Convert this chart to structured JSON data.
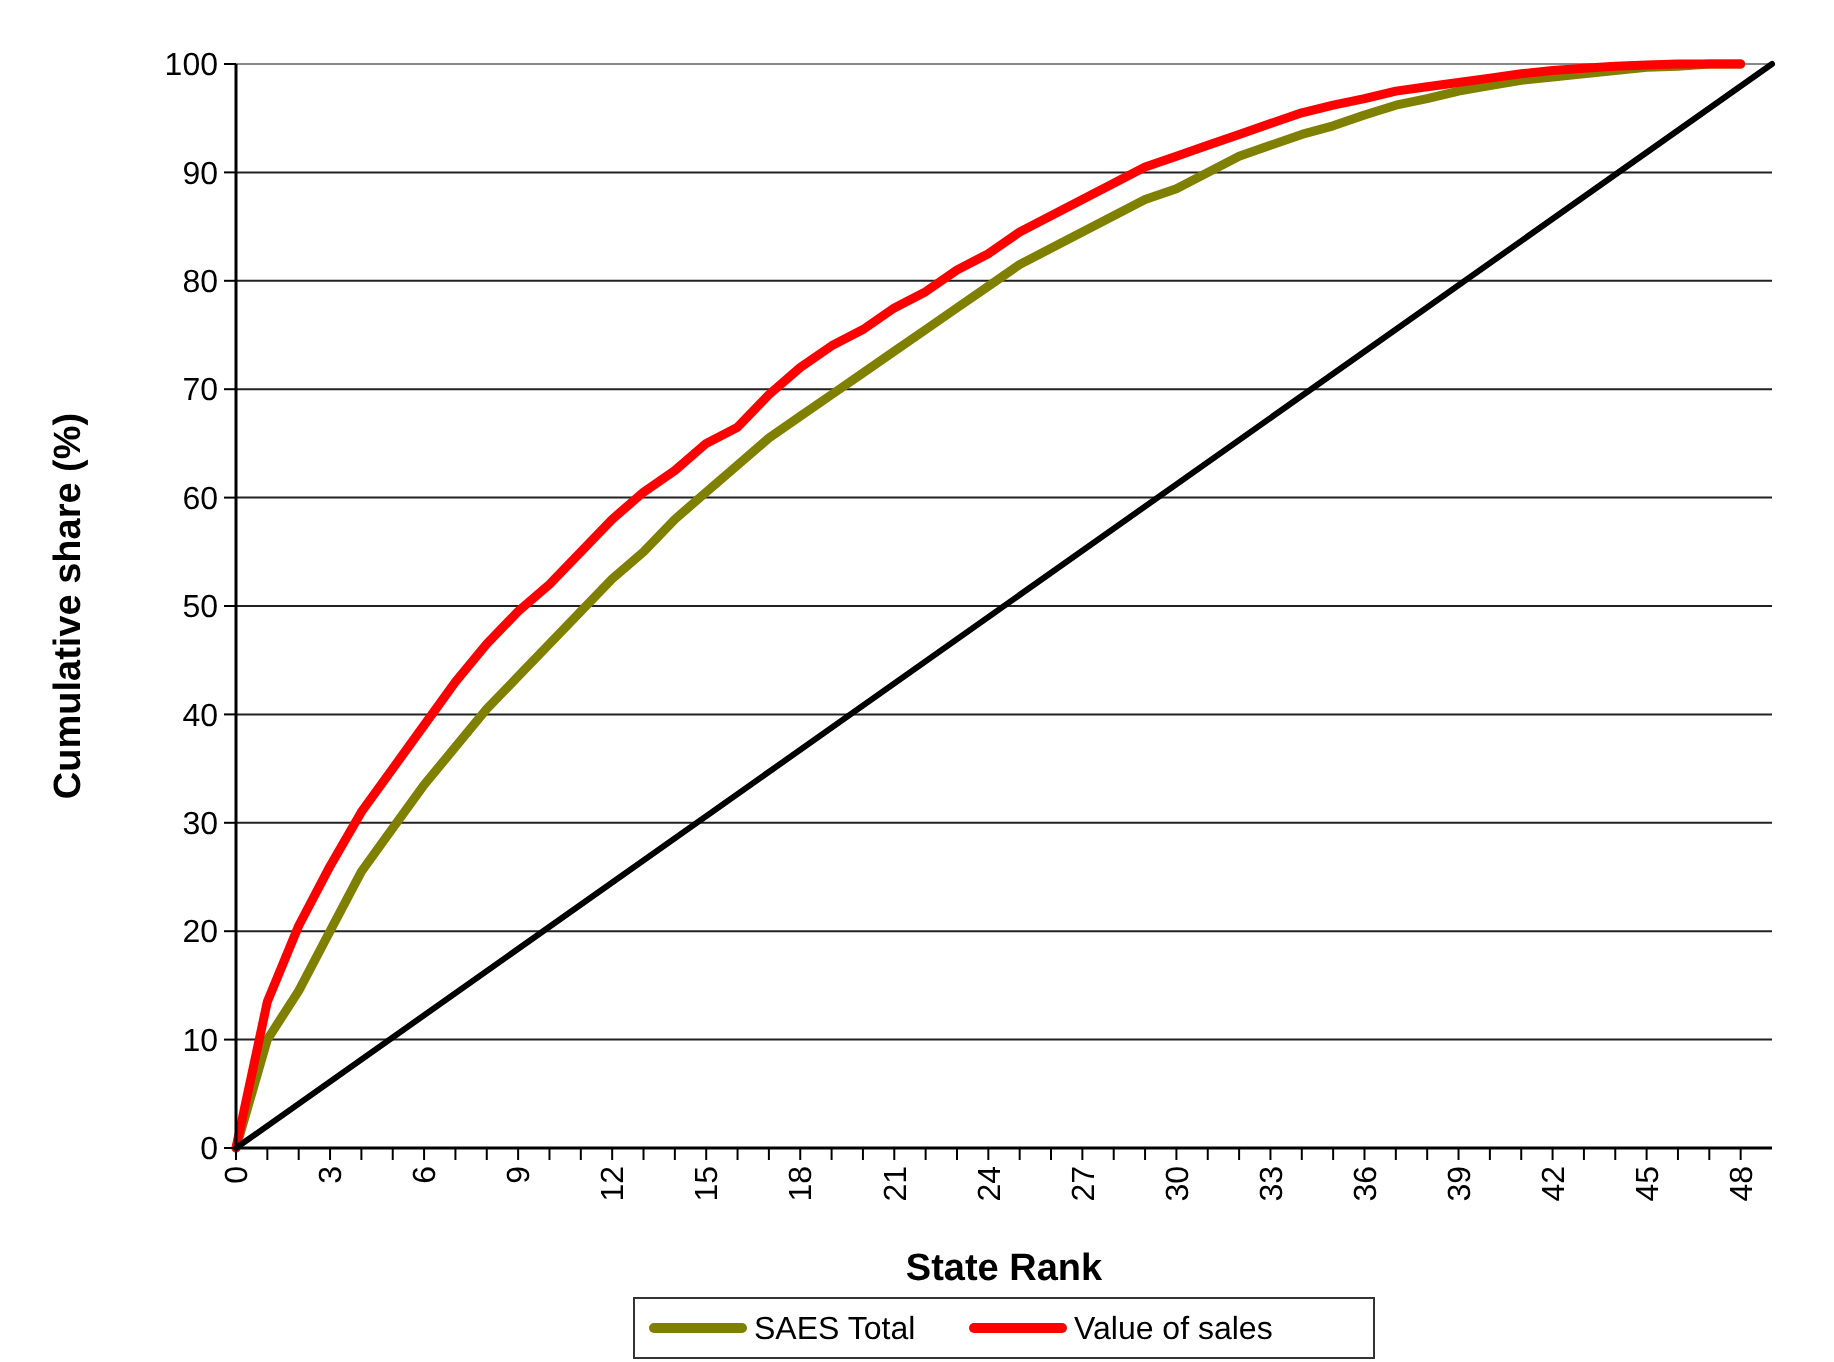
{
  "chart_data": {
    "type": "line",
    "xlabel": "State Rank",
    "ylabel": "Cumulative share (%)",
    "x": [
      0,
      1,
      2,
      3,
      4,
      5,
      6,
      7,
      8,
      9,
      10,
      11,
      12,
      13,
      14,
      15,
      16,
      17,
      18,
      19,
      20,
      21,
      22,
      23,
      24,
      25,
      26,
      27,
      28,
      29,
      30,
      31,
      32,
      33,
      34,
      35,
      36,
      37,
      38,
      39,
      40,
      41,
      42,
      43,
      44,
      45,
      46,
      47,
      48
    ],
    "series": [
      {
        "name": "SAES Total",
        "color": "#808000",
        "values": [
          0,
          10,
          14.5,
          20,
          25.5,
          29.5,
          33.5,
          37,
          40.5,
          43.5,
          46.5,
          49.5,
          52.5,
          55,
          58,
          60.5,
          63,
          65.5,
          67.5,
          69.5,
          71.5,
          73.5,
          75.5,
          77.5,
          79.5,
          81.5,
          83,
          84.5,
          86,
          87.5,
          88.5,
          90,
          91.5,
          92.5,
          93.5,
          94.3,
          95.3,
          96.2,
          96.8,
          97.5,
          98,
          98.5,
          98.8,
          99.1,
          99.4,
          99.7,
          99.8,
          100,
          100
        ]
      },
      {
        "name": "Value of sales",
        "color": "#ff0000",
        "values": [
          0,
          13.5,
          20.5,
          26,
          31,
          35,
          39,
          43,
          46.5,
          49.5,
          52,
          55,
          58,
          60.5,
          62.5,
          65,
          66.5,
          69.5,
          72,
          74,
          75.5,
          77.5,
          79,
          81,
          82.5,
          84.5,
          86,
          87.5,
          89,
          90.5,
          91.5,
          92.5,
          93.5,
          94.5,
          95.5,
          96.2,
          96.8,
          97.5,
          97.9,
          98.3,
          98.7,
          99.1,
          99.4,
          99.6,
          99.8,
          99.9,
          100,
          100,
          100
        ]
      },
      {
        "color": "#000000",
        "x": [
          0,
          49
        ],
        "values": [
          0,
          100
        ]
      }
    ],
    "xlim": [
      0,
      49
    ],
    "xticks": [
      0,
      {
        "value": 1,
        "label": null
      },
      {
        "value": 2,
        "label": null
      },
      3,
      {
        "value": 4,
        "label": null
      },
      {
        "value": 5,
        "label": null
      },
      6,
      {
        "value": 7,
        "label": null
      },
      {
        "value": 8,
        "label": null
      },
      9,
      {
        "value": 10,
        "label": null
      },
      {
        "value": 11,
        "label": null
      },
      12,
      {
        "value": 13,
        "label": null
      },
      {
        "value": 14,
        "label": null
      },
      15,
      {
        "value": 16,
        "label": null
      },
      {
        "value": 17,
        "label": null
      },
      18,
      {
        "value": 19,
        "label": null
      },
      {
        "value": 20,
        "label": null
      },
      21,
      {
        "value": 22,
        "label": null
      },
      {
        "value": 23,
        "label": null
      },
      24,
      {
        "value": 25,
        "label": null
      },
      {
        "value": 26,
        "label": null
      },
      27,
      {
        "value": 28,
        "label": null
      },
      {
        "value": 29,
        "label": null
      },
      30,
      {
        "value": 31,
        "label": null
      },
      {
        "value": 32,
        "label": null
      },
      33,
      {
        "value": 34,
        "label": null
      },
      {
        "value": 35,
        "label": null
      },
      36,
      {
        "value": 37,
        "label": null
      },
      {
        "value": 38,
        "label": null
      },
      39,
      {
        "value": 40,
        "label": null
      },
      {
        "value": 41,
        "label": null
      },
      42,
      {
        "value": 43,
        "label": null
      },
      {
        "value": 44,
        "label": null
      },
      45,
      {
        "value": 46,
        "label": null
      },
      {
        "value": 47,
        "label": null
      },
      48
    ],
    "ylim": [
      0,
      100
    ],
    "yticks": [
      0,
      10,
      20,
      30,
      40,
      50,
      60,
      70,
      80,
      90,
      100
    ],
    "grid": "y",
    "legend": "bottom",
    "marker": "none",
    "line_style": "solid"
  }
}
